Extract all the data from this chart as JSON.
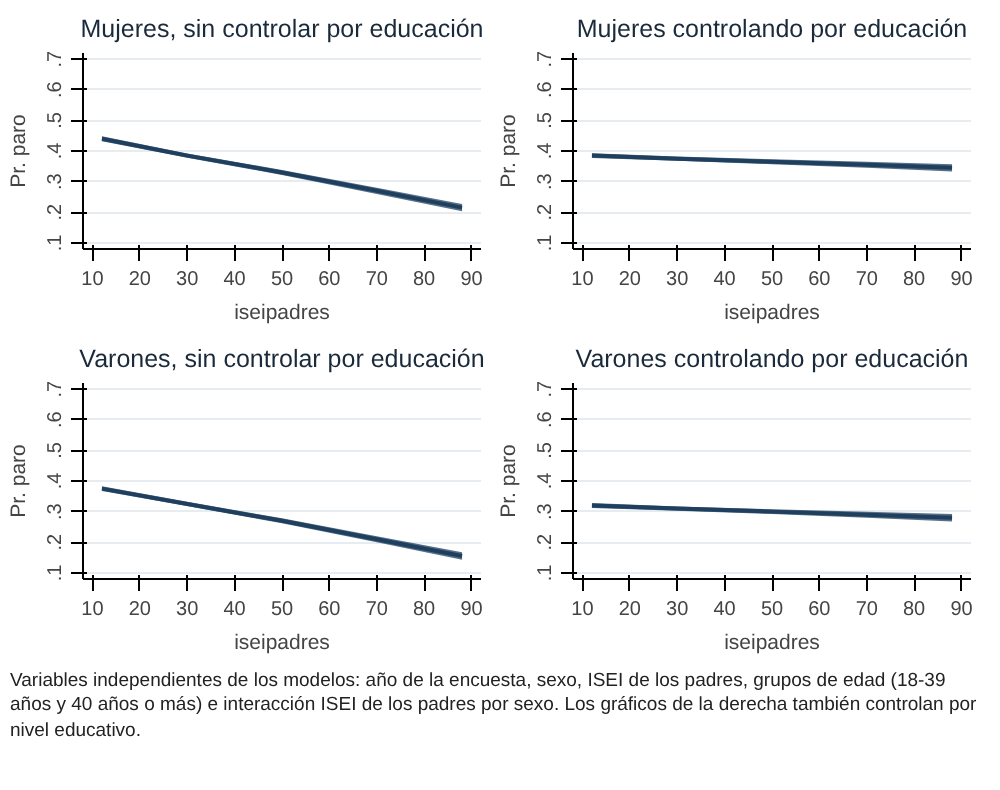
{
  "chart_data": [
    {
      "type": "line",
      "title": "Mujeres, sin controlar por educación",
      "xlabel": "iseipadres",
      "ylabel": "Pr. paro",
      "x": [
        12,
        30,
        50,
        70,
        88
      ],
      "xlim": [
        8,
        92
      ],
      "ylim": [
        0.08,
        0.72
      ],
      "xticks": [
        10,
        20,
        30,
        40,
        50,
        60,
        70,
        80,
        90
      ],
      "yticks": [
        {
          "value": 0.1,
          "label": ".1"
        },
        {
          "value": 0.2,
          "label": ".2"
        },
        {
          "value": 0.3,
          "label": ".3"
        },
        {
          "value": 0.4,
          "label": ".4"
        },
        {
          "value": 0.5,
          "label": ".5"
        },
        {
          "value": 0.6,
          "label": ".6"
        },
        {
          "value": 0.7,
          "label": ".7"
        }
      ],
      "grid": "y",
      "series": [
        {
          "color": "#1f3f5f",
          "values": [
            0.44,
            0.385,
            0.33,
            0.27,
            0.215
          ],
          "lower": [
            0.432,
            0.378,
            0.322,
            0.26,
            0.203
          ],
          "upper": [
            0.448,
            0.392,
            0.338,
            0.28,
            0.227
          ]
        }
      ]
    },
    {
      "type": "line",
      "title": "Mujeres controlando por educación",
      "xlabel": "iseipadres",
      "ylabel": "Pr. paro",
      "x": [
        12,
        30,
        50,
        70,
        88
      ],
      "xlim": [
        8,
        92
      ],
      "ylim": [
        0.08,
        0.72
      ],
      "xticks": [
        10,
        20,
        30,
        40,
        50,
        60,
        70,
        80,
        90
      ],
      "yticks": [
        {
          "value": 0.1,
          "label": ".1"
        },
        {
          "value": 0.2,
          "label": ".2"
        },
        {
          "value": 0.3,
          "label": ".3"
        },
        {
          "value": 0.4,
          "label": ".4"
        },
        {
          "value": 0.5,
          "label": ".5"
        },
        {
          "value": 0.6,
          "label": ".6"
        },
        {
          "value": 0.7,
          "label": ".7"
        }
      ],
      "grid": "y",
      "series": [
        {
          "color": "#1f3f5f",
          "values": [
            0.385,
            0.375,
            0.365,
            0.355,
            0.345
          ],
          "lower": [
            0.377,
            0.368,
            0.357,
            0.345,
            0.333
          ],
          "upper": [
            0.393,
            0.382,
            0.373,
            0.365,
            0.357
          ]
        }
      ]
    },
    {
      "type": "line",
      "title": "Varones, sin controlar por educación",
      "xlabel": "iseipadres",
      "ylabel": "Pr. paro",
      "x": [
        12,
        30,
        50,
        70,
        88
      ],
      "xlim": [
        8,
        92
      ],
      "ylim": [
        0.08,
        0.72
      ],
      "xticks": [
        10,
        20,
        30,
        40,
        50,
        60,
        70,
        80,
        90
      ],
      "yticks": [
        {
          "value": 0.1,
          "label": ".1"
        },
        {
          "value": 0.2,
          "label": ".2"
        },
        {
          "value": 0.3,
          "label": ".3"
        },
        {
          "value": 0.4,
          "label": ".4"
        },
        {
          "value": 0.5,
          "label": ".5"
        },
        {
          "value": 0.6,
          "label": ".6"
        },
        {
          "value": 0.7,
          "label": ".7"
        }
      ],
      "grid": "y",
      "series": [
        {
          "color": "#1f3f5f",
          "values": [
            0.375,
            0.325,
            0.27,
            0.21,
            0.155
          ],
          "lower": [
            0.367,
            0.318,
            0.262,
            0.2,
            0.143
          ],
          "upper": [
            0.383,
            0.332,
            0.278,
            0.22,
            0.167
          ]
        }
      ]
    },
    {
      "type": "line",
      "title": "Varones controlando por educación",
      "xlabel": "iseipadres",
      "ylabel": "Pr. paro",
      "x": [
        12,
        30,
        50,
        70,
        88
      ],
      "xlim": [
        8,
        92
      ],
      "ylim": [
        0.08,
        0.72
      ],
      "xticks": [
        10,
        20,
        30,
        40,
        50,
        60,
        70,
        80,
        90
      ],
      "yticks": [
        {
          "value": 0.1,
          "label": ".1"
        },
        {
          "value": 0.2,
          "label": ".2"
        },
        {
          "value": 0.3,
          "label": ".3"
        },
        {
          "value": 0.4,
          "label": ".4"
        },
        {
          "value": 0.5,
          "label": ".5"
        },
        {
          "value": 0.6,
          "label": ".6"
        },
        {
          "value": 0.7,
          "label": ".7"
        }
      ],
      "grid": "y",
      "series": [
        {
          "color": "#1f3f5f",
          "values": [
            0.32,
            0.31,
            0.3,
            0.29,
            0.28
          ],
          "lower": [
            0.312,
            0.303,
            0.292,
            0.28,
            0.268
          ],
          "upper": [
            0.328,
            0.317,
            0.308,
            0.3,
            0.292
          ]
        }
      ],
      "annotations": [
        "Variables independientes de los modelos: año de la encuesta, sexo, ISEI de los padres, grupos de edad (18-39 años y 40 años o más) e interacción ISEI de los padres por sexo. Los gráficos de la derecha también controlan por nivel educativo."
      ]
    }
  ]
}
